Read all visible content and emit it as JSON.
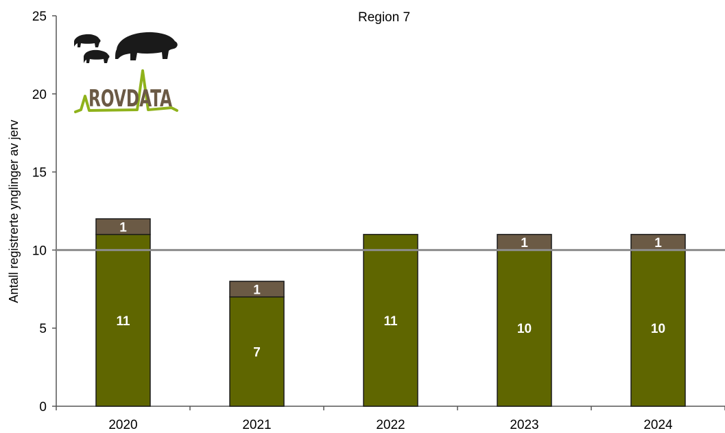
{
  "chart_data": {
    "type": "bar",
    "stacked": true,
    "title": "Region 7",
    "xlabel": "",
    "ylabel": "Antall registrerte ynglinger av jerv",
    "categories": [
      "2020",
      "2021",
      "2022",
      "2023",
      "2024"
    ],
    "series": [
      {
        "values": [
          11,
          7,
          11,
          10,
          10
        ],
        "color": "#5f6600"
      },
      {
        "values": [
          1,
          1,
          0,
          1,
          1
        ],
        "color": "#6b5a45"
      }
    ],
    "data_labels": [
      [
        "11",
        "7",
        "11",
        "10",
        "10"
      ],
      [
        "1",
        "1",
        "",
        "1",
        "1"
      ]
    ],
    "ylim": [
      0,
      25
    ],
    "yticks": [
      0,
      5,
      10,
      15,
      20,
      25
    ],
    "reference_line": {
      "value": 10,
      "color": "#8c8c8c"
    },
    "grid": false,
    "logo": {
      "text": "ROVDATA",
      "text_color": "#6b5a45",
      "line_color": "#8fb21b",
      "silhouette_color": "#1a1a1a"
    }
  }
}
